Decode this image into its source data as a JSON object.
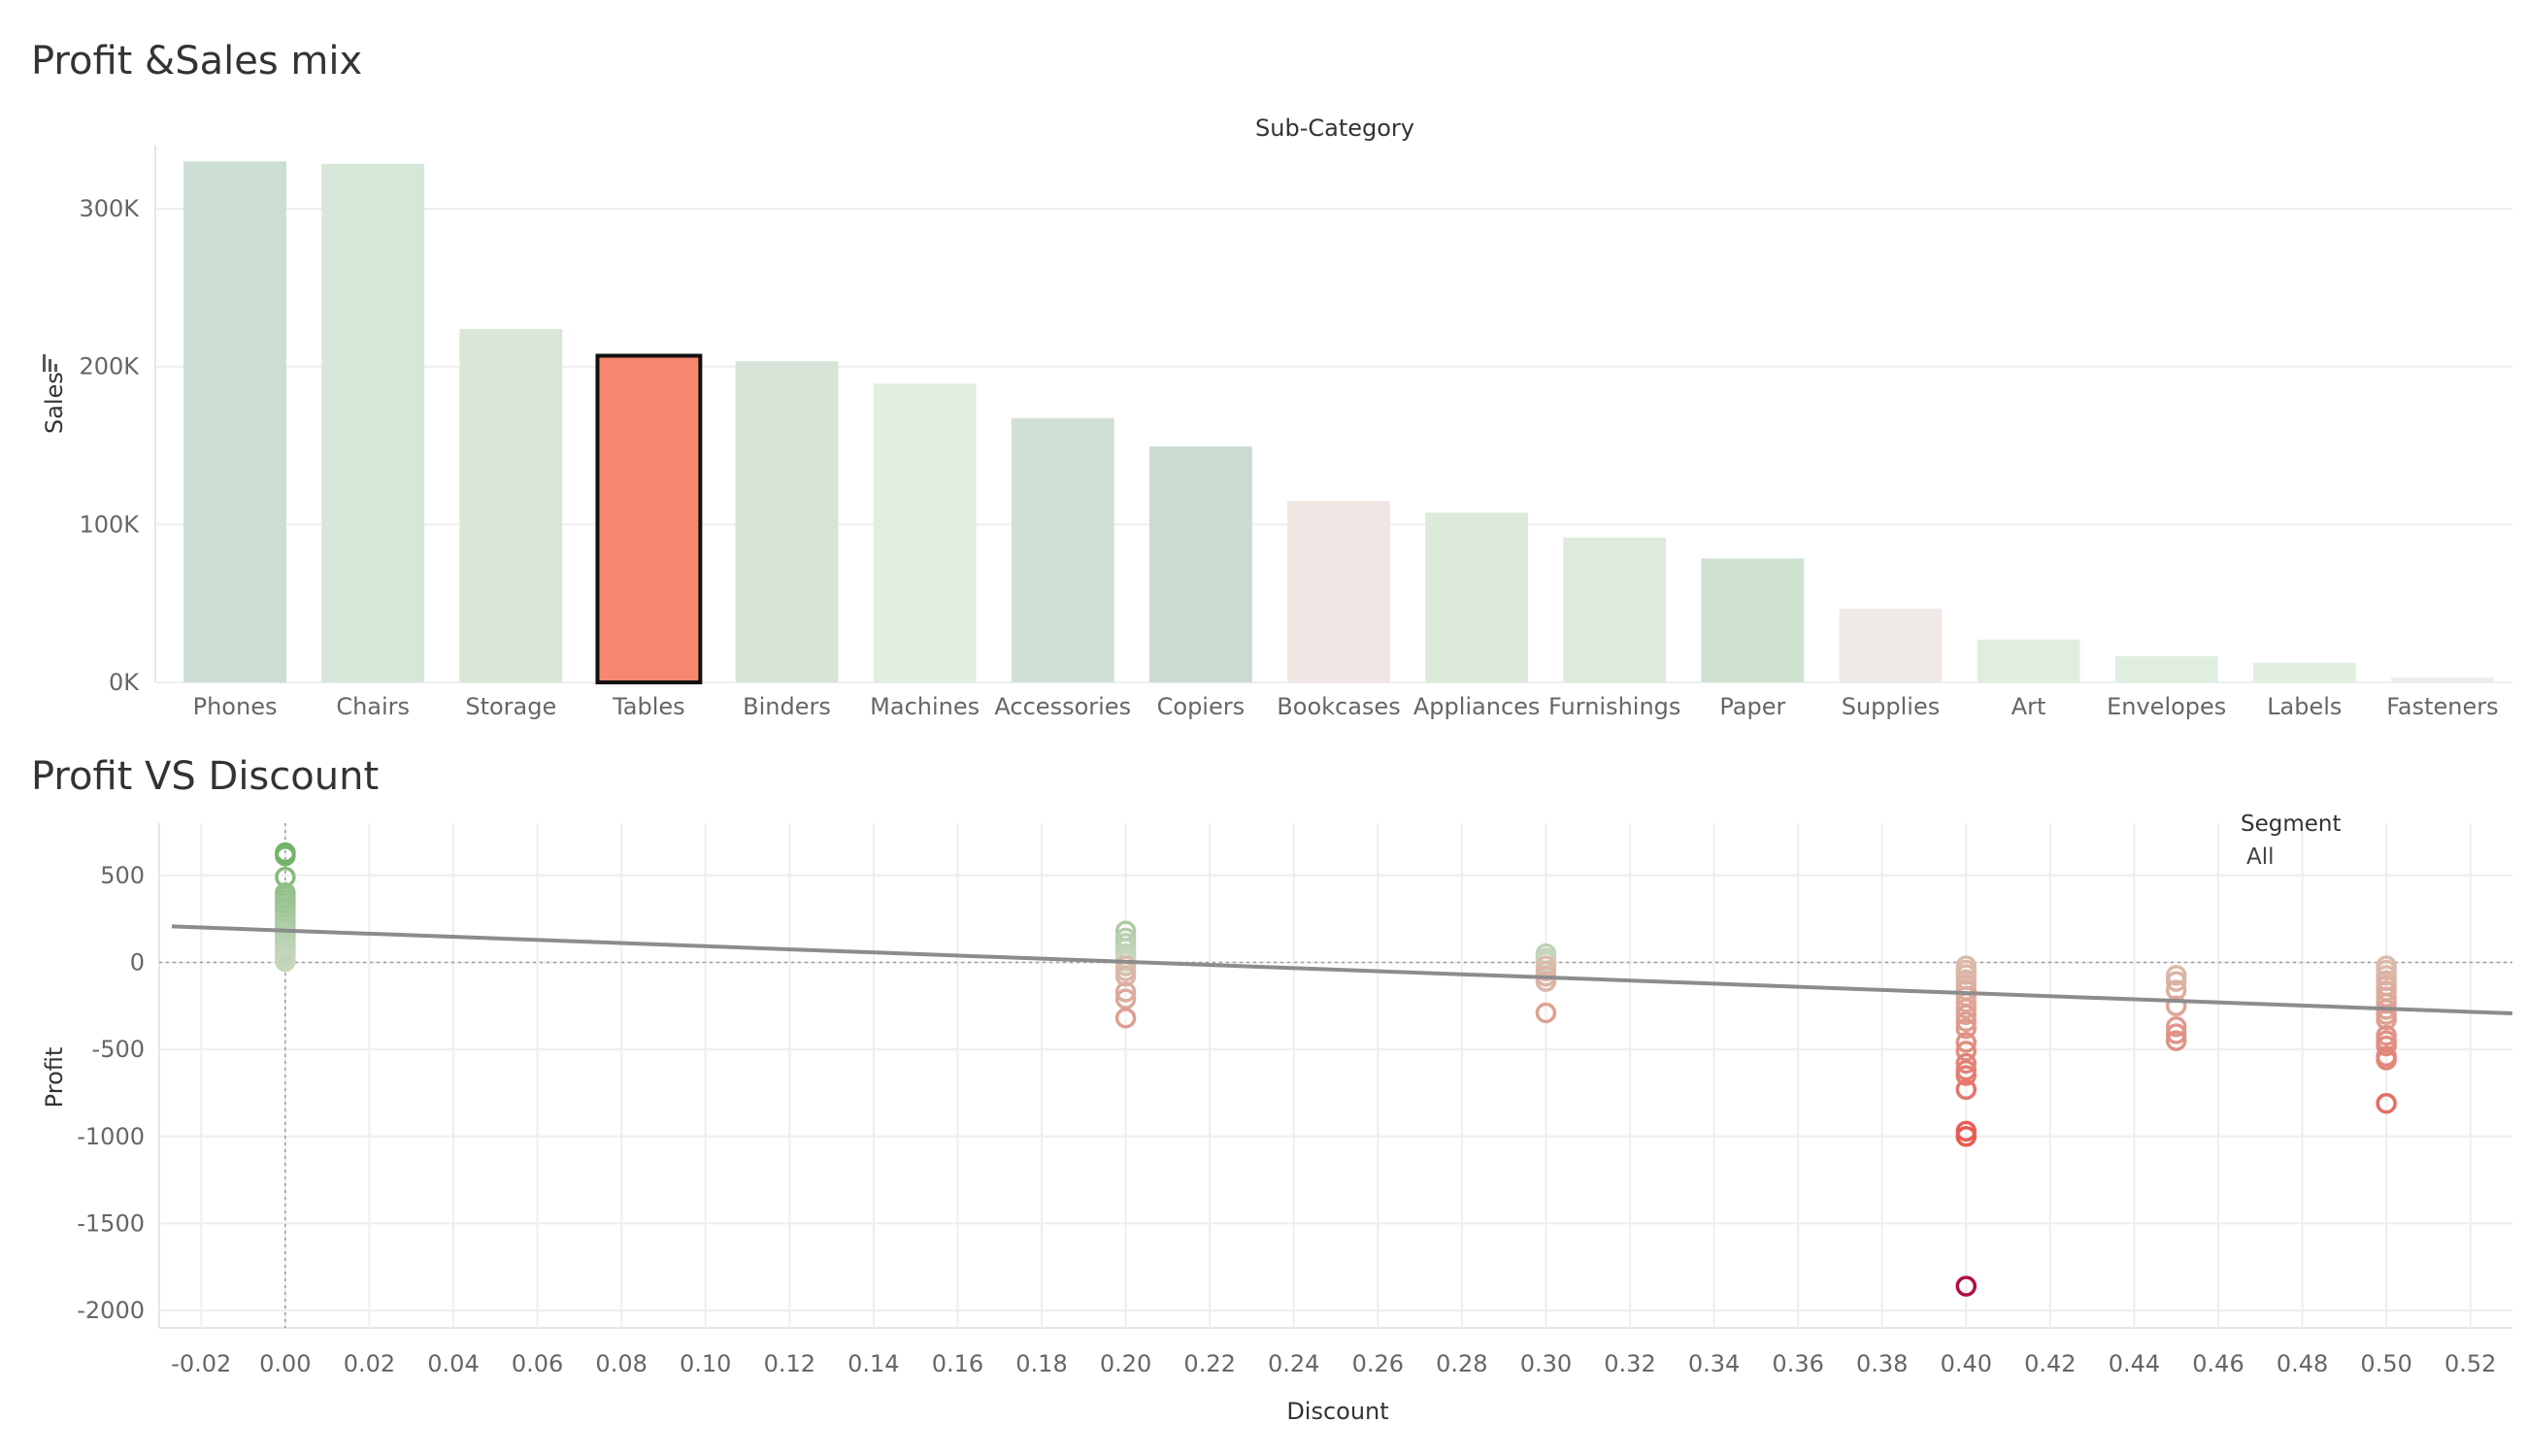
{
  "dashboard": {
    "bar_title": "Profit &Sales mix",
    "scatter_title": "Profit VS Discount"
  },
  "legend": {
    "title": "Segment",
    "value": "All"
  },
  "colors": {
    "selected_bar": "#F8876F",
    "selected_outline": "#111111",
    "trend_line": "#8C8C8C",
    "grid": "#EEEEEE"
  },
  "chart_data": [
    {
      "type": "bar",
      "header": "Sub-Category",
      "ylabel": "Sales",
      "ylim": [
        0,
        340000
      ],
      "yticks": [
        0,
        100000,
        200000,
        300000
      ],
      "ytick_labels": [
        "0K",
        "100K",
        "200K",
        "300K"
      ],
      "categories": [
        "Phones",
        "Chairs",
        "Storage",
        "Tables",
        "Binders",
        "Machines",
        "Accessories",
        "Copiers",
        "Bookcases",
        "Appliances",
        "Furnishings",
        "Paper",
        "Supplies",
        "Art",
        "Envelopes",
        "Labels",
        "Fasteners"
      ],
      "values": [
        330000,
        328500,
        223800,
        206900,
        203400,
        189200,
        167400,
        149500,
        114900,
        107500,
        91700,
        78500,
        46700,
        27100,
        16500,
        12500,
        3000
      ],
      "colors": [
        "#CCDED3",
        "#D6E6D9",
        "#DAE7D7",
        "#F8876F",
        "#D7E3D7",
        "#E2EDE1",
        "#D1E0D5",
        "#CBDBD2",
        "#F0E6E3",
        "#DCEAD9",
        "#DEEBDC",
        "#CFE2D2",
        "#EFEAE6",
        "#E0EEE0",
        "#DFEEDF",
        "#E1EFE1",
        "#EEEDEA"
      ],
      "selected": "Tables"
    },
    {
      "type": "scatter",
      "xlabel": "Discount",
      "ylabel": "Profit",
      "xlim": [
        -0.03,
        0.53
      ],
      "ylim": [
        -2100,
        800
      ],
      "xticks": [
        -0.02,
        0.0,
        0.02,
        0.04,
        0.06,
        0.08,
        0.1,
        0.12,
        0.14,
        0.16,
        0.18,
        0.2,
        0.22,
        0.24,
        0.26,
        0.28,
        0.3,
        0.32,
        0.34,
        0.36,
        0.38,
        0.4,
        0.42,
        0.44,
        0.46,
        0.48,
        0.5,
        0.52
      ],
      "xtick_labels": [
        "-0.02",
        "0.00",
        "0.02",
        "0.04",
        "0.06",
        "0.08",
        "0.10",
        "0.12",
        "0.14",
        "0.16",
        "0.18",
        "0.20",
        "0.22",
        "0.24",
        "0.26",
        "0.28",
        "0.30",
        "0.32",
        "0.34",
        "0.36",
        "0.38",
        "0.40",
        "0.42",
        "0.44",
        "0.46",
        "0.48",
        "0.50",
        "0.52"
      ],
      "yticks": [
        500,
        0,
        -500,
        -1000,
        -1500,
        -2000
      ],
      "ytick_labels": [
        "500",
        "0",
        "-500",
        "-1000",
        "-1500",
        "-2000"
      ],
      "trend_line": {
        "x": [
          -0.027,
          0.53
        ],
        "y": [
          207,
          -293
        ]
      },
      "points": [
        {
          "x": 0.0,
          "y": 630
        },
        {
          "x": 0.0,
          "y": 612
        },
        {
          "x": 0.0,
          "y": 490
        },
        {
          "x": 0.0,
          "y": 400
        },
        {
          "x": 0.0,
          "y": 380
        },
        {
          "x": 0.0,
          "y": 360
        },
        {
          "x": 0.0,
          "y": 340
        },
        {
          "x": 0.0,
          "y": 320
        },
        {
          "x": 0.0,
          "y": 300
        },
        {
          "x": 0.0,
          "y": 280
        },
        {
          "x": 0.0,
          "y": 255
        },
        {
          "x": 0.0,
          "y": 230
        },
        {
          "x": 0.0,
          "y": 205
        },
        {
          "x": 0.0,
          "y": 180
        },
        {
          "x": 0.0,
          "y": 160
        },
        {
          "x": 0.0,
          "y": 140
        },
        {
          "x": 0.0,
          "y": 120
        },
        {
          "x": 0.0,
          "y": 100
        },
        {
          "x": 0.0,
          "y": 80
        },
        {
          "x": 0.0,
          "y": 60
        },
        {
          "x": 0.0,
          "y": 40
        },
        {
          "x": 0.0,
          "y": 20
        },
        {
          "x": 0.0,
          "y": 5
        },
        {
          "x": 0.2,
          "y": 180
        },
        {
          "x": 0.2,
          "y": 140
        },
        {
          "x": 0.2,
          "y": 110
        },
        {
          "x": 0.2,
          "y": 80
        },
        {
          "x": 0.2,
          "y": 50
        },
        {
          "x": 0.2,
          "y": 25
        },
        {
          "x": 0.2,
          "y": 5
        },
        {
          "x": 0.2,
          "y": -20
        },
        {
          "x": 0.2,
          "y": -50
        },
        {
          "x": 0.2,
          "y": -80
        },
        {
          "x": 0.2,
          "y": -170
        },
        {
          "x": 0.2,
          "y": -210
        },
        {
          "x": 0.2,
          "y": -320
        },
        {
          "x": 0.3,
          "y": 50
        },
        {
          "x": 0.3,
          "y": 25
        },
        {
          "x": 0.3,
          "y": 5
        },
        {
          "x": 0.3,
          "y": -20
        },
        {
          "x": 0.3,
          "y": -50
        },
        {
          "x": 0.3,
          "y": -80
        },
        {
          "x": 0.3,
          "y": -110
        },
        {
          "x": 0.3,
          "y": -290
        },
        {
          "x": 0.4,
          "y": -20
        },
        {
          "x": 0.4,
          "y": -45
        },
        {
          "x": 0.4,
          "y": -70
        },
        {
          "x": 0.4,
          "y": -100
        },
        {
          "x": 0.4,
          "y": -130
        },
        {
          "x": 0.4,
          "y": -160
        },
        {
          "x": 0.4,
          "y": -195
        },
        {
          "x": 0.4,
          "y": -230
        },
        {
          "x": 0.4,
          "y": -265
        },
        {
          "x": 0.4,
          "y": -300
        },
        {
          "x": 0.4,
          "y": -340
        },
        {
          "x": 0.4,
          "y": -380
        },
        {
          "x": 0.4,
          "y": -460
        },
        {
          "x": 0.4,
          "y": -510
        },
        {
          "x": 0.4,
          "y": -580
        },
        {
          "x": 0.4,
          "y": -620
        },
        {
          "x": 0.4,
          "y": -650
        },
        {
          "x": 0.4,
          "y": -730
        },
        {
          "x": 0.4,
          "y": -970
        },
        {
          "x": 0.4,
          "y": -1000
        },
        {
          "x": 0.4,
          "y": -1860
        },
        {
          "x": 0.45,
          "y": -75
        },
        {
          "x": 0.45,
          "y": -110
        },
        {
          "x": 0.45,
          "y": -160
        },
        {
          "x": 0.45,
          "y": -250
        },
        {
          "x": 0.45,
          "y": -370
        },
        {
          "x": 0.45,
          "y": -410
        },
        {
          "x": 0.45,
          "y": -450
        },
        {
          "x": 0.5,
          "y": -20
        },
        {
          "x": 0.5,
          "y": -45
        },
        {
          "x": 0.5,
          "y": -75
        },
        {
          "x": 0.5,
          "y": -105
        },
        {
          "x": 0.5,
          "y": -135
        },
        {
          "x": 0.5,
          "y": -165
        },
        {
          "x": 0.5,
          "y": -200
        },
        {
          "x": 0.5,
          "y": -235
        },
        {
          "x": 0.5,
          "y": -270
        },
        {
          "x": 0.5,
          "y": -300
        },
        {
          "x": 0.5,
          "y": -330
        },
        {
          "x": 0.5,
          "y": -420
        },
        {
          "x": 0.5,
          "y": -450
        },
        {
          "x": 0.5,
          "y": -480
        },
        {
          "x": 0.5,
          "y": -540
        },
        {
          "x": 0.5,
          "y": -560
        },
        {
          "x": 0.5,
          "y": -810
        }
      ]
    }
  ]
}
